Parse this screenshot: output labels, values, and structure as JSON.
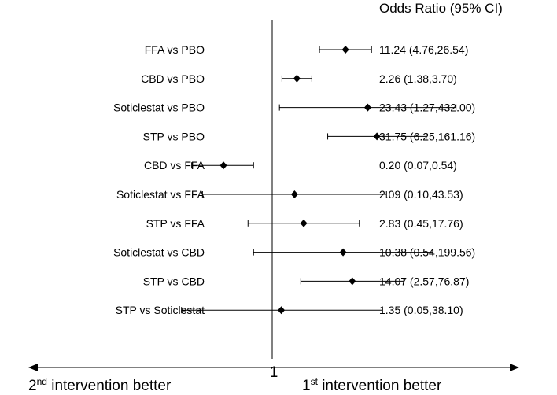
{
  "chart_data": {
    "type": "forest",
    "header": "Odds Ratio (95% CI)",
    "reference_line": 1,
    "reference_label": "1",
    "x_scale": "log",
    "xlim": [
      0.03,
      500
    ],
    "left_arrow": {
      "prefix": "2",
      "superscript": "nd",
      "suffix": " intervention better"
    },
    "right_arrow": {
      "prefix": "1",
      "superscript": "st",
      "suffix": " intervention better"
    },
    "rows": [
      {
        "label": "FFA vs PBO",
        "or": 11.24,
        "lower": 4.76,
        "upper": 26.54,
        "ci_text": "11.24 (4.76,26.54)"
      },
      {
        "label": "CBD vs PBO",
        "or": 2.26,
        "lower": 1.38,
        "upper": 3.7,
        "ci_text": "2.26 (1.38,3.70)"
      },
      {
        "label": "Soticlestat vs PBO",
        "or": 23.43,
        "lower": 1.27,
        "upper": 432.0,
        "ci_text": "23.43 (1.27,432.00)"
      },
      {
        "label": "STP vs PBO",
        "or": 31.75,
        "lower": 6.25,
        "upper": 161.16,
        "ci_text": "31.75 (6.25,161.16)"
      },
      {
        "label": "CBD vs FFA",
        "or": 0.2,
        "lower": 0.07,
        "upper": 0.54,
        "ci_text": "0.20 (0.07,0.54)"
      },
      {
        "label": "Soticlestat vs FFA",
        "or": 2.09,
        "lower": 0.1,
        "upper": 43.53,
        "ci_text": "2.09 (0.10,43.53)"
      },
      {
        "label": "STP vs FFA",
        "or": 2.83,
        "lower": 0.45,
        "upper": 17.76,
        "ci_text": "2.83 (0.45,17.76)"
      },
      {
        "label": "Soticlestat vs CBD",
        "or": 10.38,
        "lower": 0.54,
        "upper": 199.56,
        "ci_text": "10.38 (0.54,199.56)"
      },
      {
        "label": "STP vs CBD",
        "or": 14.07,
        "lower": 2.57,
        "upper": 76.87,
        "ci_text": "14.07 (2.57,76.87)"
      },
      {
        "label": "STP vs Soticlestat",
        "or": 1.35,
        "lower": 0.05,
        "upper": 38.1,
        "ci_text": "1.35 (0.05,38.10)"
      }
    ]
  }
}
